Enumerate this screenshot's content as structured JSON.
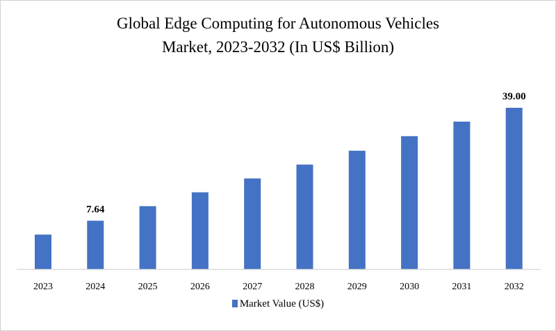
{
  "chart_data": {
    "type": "bar",
    "title": "Global Edge Computing for Autonomous Vehicles Market, 2023-2032 (In US$ Billion)",
    "title_lines": [
      "Global Edge Computing for Autonomous Vehicles",
      "Market, 2023-2032 (In US$ Billion)"
    ],
    "categories": [
      "2023",
      "2024",
      "2025",
      "2026",
      "2027",
      "2028",
      "2029",
      "2030",
      "2031",
      "2032"
    ],
    "series": [
      {
        "name": "Market Value (US$)",
        "values": [
          3.79,
          7.64,
          11.68,
          15.53,
          19.38,
          23.23,
          27.08,
          31.12,
          35.16,
          39.0
        ],
        "color": "#4472c4"
      }
    ],
    "data_labels": [
      {
        "category": "2024",
        "text": "7.64"
      },
      {
        "category": "2032",
        "text": "39.00"
      }
    ],
    "xlabel": "",
    "ylabel": "",
    "ylim": [
      -5.8,
      39.0
    ],
    "y_axis_visible": false,
    "grid": false,
    "legend_position": "bottom"
  }
}
